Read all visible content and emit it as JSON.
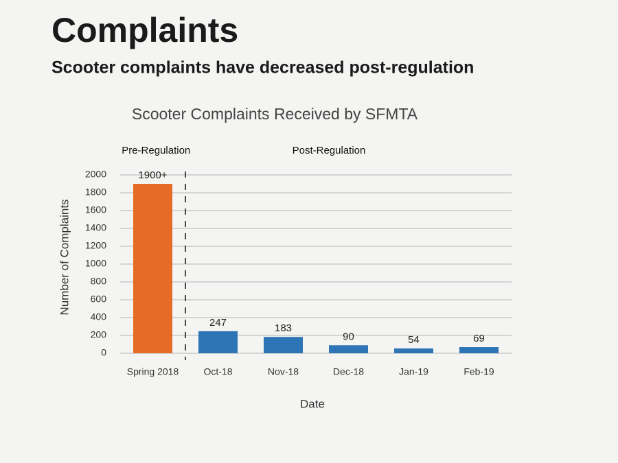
{
  "header": {
    "title": "Complaints",
    "subtitle": "Scooter complaints have decreased post-regulation"
  },
  "chart_data": {
    "type": "bar",
    "title": "Scooter Complaints  Received by SFMTA",
    "y_label": "Number of Complaints",
    "x_label": "Date",
    "categories": [
      "Spring 2018",
      "Oct-18",
      "Nov-18",
      "Dec-18",
      "Jan-19",
      "Feb-19"
    ],
    "values": [
      1900,
      247,
      183,
      90,
      54,
      69
    ],
    "value_labels": [
      "1900+",
      "247",
      "183",
      "90",
      "54",
      "69"
    ],
    "colors": [
      "#e46c26",
      "#2e75b6",
      "#2e75b6",
      "#2e75b6",
      "#2e75b6",
      "#2e75b6"
    ],
    "annotations": [
      "Pre-Regulation",
      "Post-Regulation"
    ],
    "ylim": [
      0,
      2000
    ],
    "yticks": [
      0,
      200,
      400,
      600,
      800,
      1000,
      1200,
      1400,
      1600,
      1800,
      2000
    ],
    "grid": true
  }
}
